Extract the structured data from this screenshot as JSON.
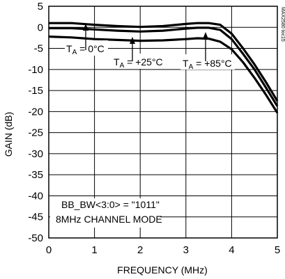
{
  "chart_data": {
    "type": "line",
    "xlabel": "FREQUENCY (MHz)",
    "ylabel": "GAIN (dB)",
    "xlim": [
      0,
      5
    ],
    "ylim": [
      -50,
      5
    ],
    "grid": true,
    "xticks": [
      "0",
      "1",
      "2",
      "3",
      "4",
      "5"
    ],
    "yticks": [
      "5",
      "0",
      "-5",
      "-10",
      "-15",
      "-20",
      "-25",
      "-30",
      "-35",
      "-40",
      "-45",
      "-50"
    ],
    "series": [
      {
        "name": "TA = 0°C",
        "x": [
          0.0,
          0.5,
          1.0,
          1.5,
          2.0,
          2.5,
          3.0,
          3.25,
          3.5,
          3.75,
          4.0,
          4.25,
          4.5,
          4.75,
          5.0
        ],
        "y": [
          1.0,
          1.0,
          0.6,
          0.3,
          0.1,
          0.3,
          0.8,
          1.0,
          1.0,
          0.6,
          -1.5,
          -5.0,
          -8.8,
          -13.0,
          -17.5
        ]
      },
      {
        "name": "TA = +25°C",
        "x": [
          0.0,
          0.5,
          1.0,
          1.5,
          2.0,
          2.5,
          3.0,
          3.25,
          3.5,
          3.75,
          4.0,
          4.25,
          4.5,
          4.75,
          5.0
        ],
        "y": [
          -0.2,
          -0.2,
          -0.5,
          -0.8,
          -1.0,
          -0.8,
          -0.3,
          -0.1,
          -0.1,
          -0.6,
          -2.8,
          -6.3,
          -10.0,
          -14.3,
          -18.7
        ]
      },
      {
        "name": "TA = +85°C",
        "x": [
          0.0,
          0.5,
          1.0,
          1.5,
          2.0,
          2.5,
          3.0,
          3.25,
          3.5,
          3.75,
          4.0,
          4.25,
          4.5,
          4.75,
          5.0
        ],
        "y": [
          -2.2,
          -2.4,
          -2.8,
          -3.0,
          -3.2,
          -3.1,
          -2.8,
          -2.6,
          -2.7,
          -3.4,
          -5.2,
          -8.3,
          -12.0,
          -16.0,
          -20.3
        ]
      }
    ],
    "annotations": {
      "t0": {
        "main": "T",
        "sub": "A",
        "rest": " = 0°C"
      },
      "t25": {
        "main": "T",
        "sub": "A",
        "rest": " = +25°C"
      },
      "t85": {
        "main": "T",
        "sub": "A",
        "rest": " = +85°C"
      },
      "bw_line1": "BB_BW<3:0> = \"1011\"",
      "bw_line2": "8MHz CHANNEL MODE",
      "code": "MAX2580 toc15"
    }
  }
}
